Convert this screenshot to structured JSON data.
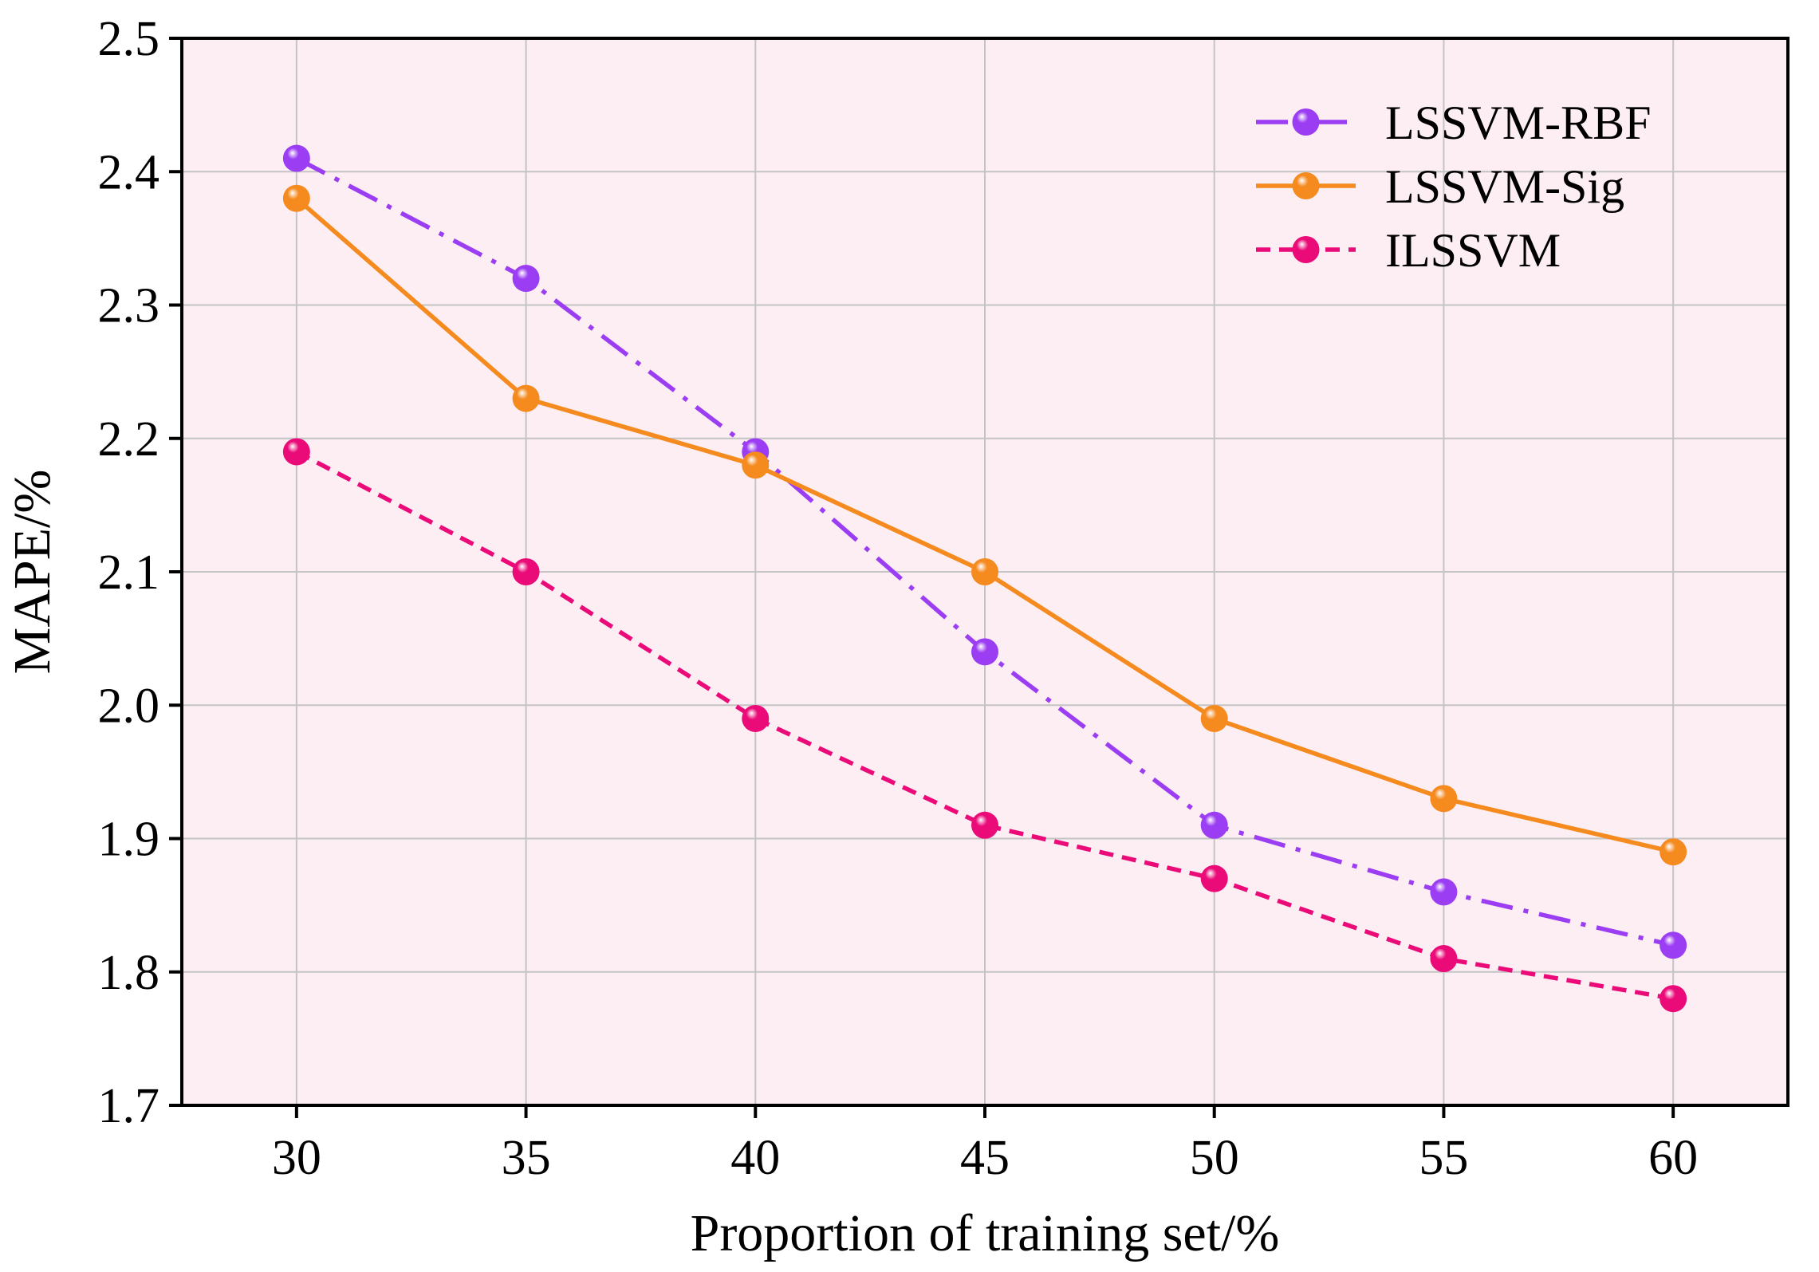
{
  "chart_data": {
    "type": "line",
    "title": "",
    "xlabel": "Proportion of training set/%",
    "ylabel": "MAPE/%",
    "x": [
      30,
      35,
      40,
      45,
      50,
      55,
      60
    ],
    "x_tick_labels": [
      "30",
      "35",
      "40",
      "45",
      "50",
      "55",
      "60"
    ],
    "xlim": [
      27.5,
      62.5
    ],
    "ylim": [
      1.7,
      2.5
    ],
    "y_ticks": [
      1.7,
      1.8,
      1.9,
      2.0,
      2.1,
      2.2,
      2.3,
      2.4,
      2.5
    ],
    "y_tick_labels": [
      "1.7",
      "1.8",
      "1.9",
      "2.0",
      "2.1",
      "2.2",
      "2.3",
      "2.4",
      "2.5"
    ],
    "grid": true,
    "plot_background": "#fdeef4",
    "legend_position": "top-right",
    "series": [
      {
        "name": "LSSVM-RBF",
        "color": "#9b3df2",
        "line_style": "dash-dot",
        "marker": "sphere",
        "values": [
          2.41,
          2.32,
          2.19,
          2.04,
          1.91,
          1.86,
          1.82
        ]
      },
      {
        "name": "LSSVM-Sig",
        "color": "#f58a1f",
        "line_style": "solid",
        "marker": "sphere",
        "values": [
          2.38,
          2.23,
          2.18,
          2.1,
          1.99,
          1.93,
          1.89
        ]
      },
      {
        "name": "ILSSVM",
        "color": "#ea0a78",
        "line_style": "dashed",
        "marker": "sphere",
        "values": [
          2.19,
          2.1,
          1.99,
          1.91,
          1.87,
          1.81,
          1.78
        ]
      }
    ]
  }
}
